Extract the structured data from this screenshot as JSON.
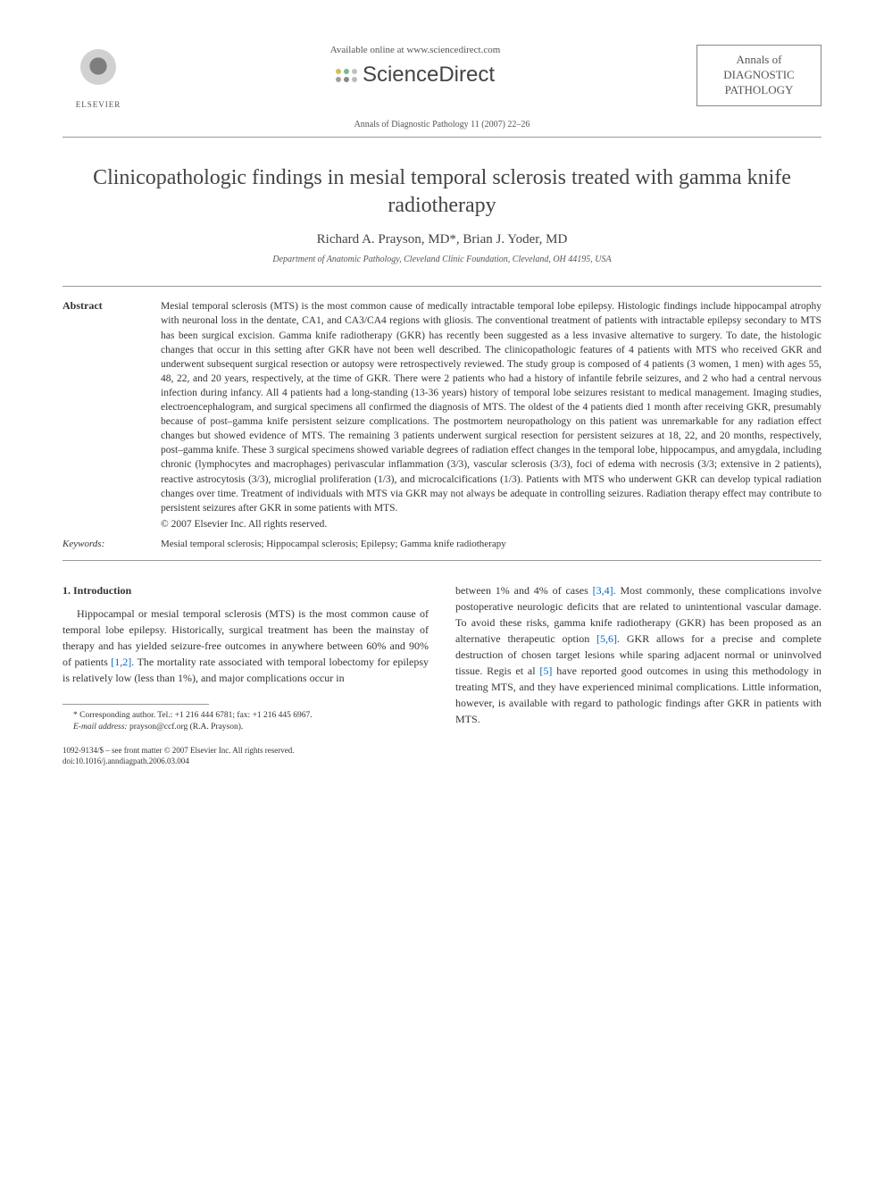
{
  "header": {
    "publisher": "ELSEVIER",
    "available_online": "Available online at www.sciencedirect.com",
    "sciencedirect": "ScienceDirect",
    "journal_name_line1": "Annals of",
    "journal_name_line2": "DIAGNOSTIC",
    "journal_name_line3": "PATHOLOGY",
    "citation": "Annals of Diagnostic Pathology 11 (2007) 22–26",
    "sd_dot_colors": [
      "#d4c05a",
      "#7bb88e",
      "#c0c0c0",
      "#a0a0a0",
      "#888",
      "#bbb"
    ]
  },
  "article": {
    "title": "Clinicopathologic findings in mesial temporal sclerosis treated with gamma knife radiotherapy",
    "authors": "Richard A. Prayson, MD*, Brian J. Yoder, MD",
    "affiliation": "Department of Anatomic Pathology, Cleveland Clinic Foundation, Cleveland, OH 44195, USA"
  },
  "abstract": {
    "label": "Abstract",
    "text": "Mesial temporal sclerosis (MTS) is the most common cause of medically intractable temporal lobe epilepsy. Histologic findings include hippocampal atrophy with neuronal loss in the dentate, CA1, and CA3/CA4 regions with gliosis. The conventional treatment of patients with intractable epilepsy secondary to MTS has been surgical excision. Gamma knife radiotherapy (GKR) has recently been suggested as a less invasive alternative to surgery. To date, the histologic changes that occur in this setting after GKR have not been well described. The clinicopathologic features of 4 patients with MTS who received GKR and underwent subsequent surgical resection or autopsy were retrospectively reviewed. The study group is composed of 4 patients (3 women, 1 men) with ages 55, 48, 22, and 20 years, respectively, at the time of GKR. There were 2 patients who had a history of infantile febrile seizures, and 2 who had a central nervous infection during infancy. All 4 patients had a long-standing (13-36 years) history of temporal lobe seizures resistant to medical management. Imaging studies, electroencephalogram, and surgical specimens all confirmed the diagnosis of MTS. The oldest of the 4 patients died 1 month after receiving GKR, presumably because of post–gamma knife persistent seizure complications. The postmortem neuropathology on this patient was unremarkable for any radiation effect changes but showed evidence of MTS. The remaining 3 patients underwent surgical resection for persistent seizures at 18, 22, and 20 months, respectively, post–gamma knife. These 3 surgical specimens showed variable degrees of radiation effect changes in the temporal lobe, hippocampus, and amygdala, including chronic (lymphocytes and macrophages) perivascular inflammation (3/3), vascular sclerosis (3/3), foci of edema with necrosis (3/3; extensive in 2 patients), reactive astrocytosis (3/3), microglial proliferation (1/3), and microcalcifications (1/3). Patients with MTS who underwent GKR can develop typical radiation changes over time. Treatment of individuals with MTS via GKR may not always be adequate in controlling seizures. Radiation therapy effect may contribute to persistent seizures after GKR in some patients with MTS.",
    "copyright": "© 2007 Elsevier Inc. All rights reserved."
  },
  "keywords": {
    "label": "Keywords:",
    "text": "Mesial temporal sclerosis; Hippocampal sclerosis; Epilepsy; Gamma knife radiotherapy"
  },
  "introduction": {
    "heading": "1. Introduction",
    "col1_text_before_ref1": "Hippocampal or mesial temporal sclerosis (MTS) is the most common cause of  temporal lobe epilepsy. Historically, surgical treatment has been the mainstay of therapy and has yielded seizure-free outcomes in anywhere between 60% and 90% of patients ",
    "ref1": "[1,2]",
    "col1_text_after_ref1": ". The mortality rate associated with temporal lobectomy for epilepsy is relatively low (less than 1%), and major complications occur in",
    "col2_text_before_ref2": "between 1% and 4% of cases ",
    "ref2": "[3,4]",
    "col2_text_mid1": ". Most commonly, these complications involve postoperative neurologic deficits that are related to unintentional vascular damage. To avoid these risks, gamma knife radiotherapy (GKR) has been proposed as an alternative therapeutic option ",
    "ref3": "[5,6]",
    "col2_text_mid2": ". GKR allows for a precise and complete destruction of chosen target lesions while sparing adjacent normal or uninvolved tissue. Regis et al ",
    "ref4": "[5]",
    "col2_text_end": " have reported good outcomes in using this methodology in treating MTS, and they have experienced minimal complications. Little information, however, is available with regard to pathologic findings after GKR in patients with MTS."
  },
  "footnote": {
    "corresponding": "* Corresponding author. Tel.: +1 216 444 6781; fax: +1 216 445 6967.",
    "email_label": "E-mail address:",
    "email": "prayson@ccf.org (R.A. Prayson)."
  },
  "footer": {
    "issn": "1092-9134/$ – see front matter © 2007 Elsevier Inc. All rights reserved.",
    "doi": "doi:10.1016/j.anndiagpath.2006.03.004"
  },
  "colors": {
    "text": "#333333",
    "link": "#0066cc",
    "rule": "#999999",
    "background": "#ffffff"
  }
}
